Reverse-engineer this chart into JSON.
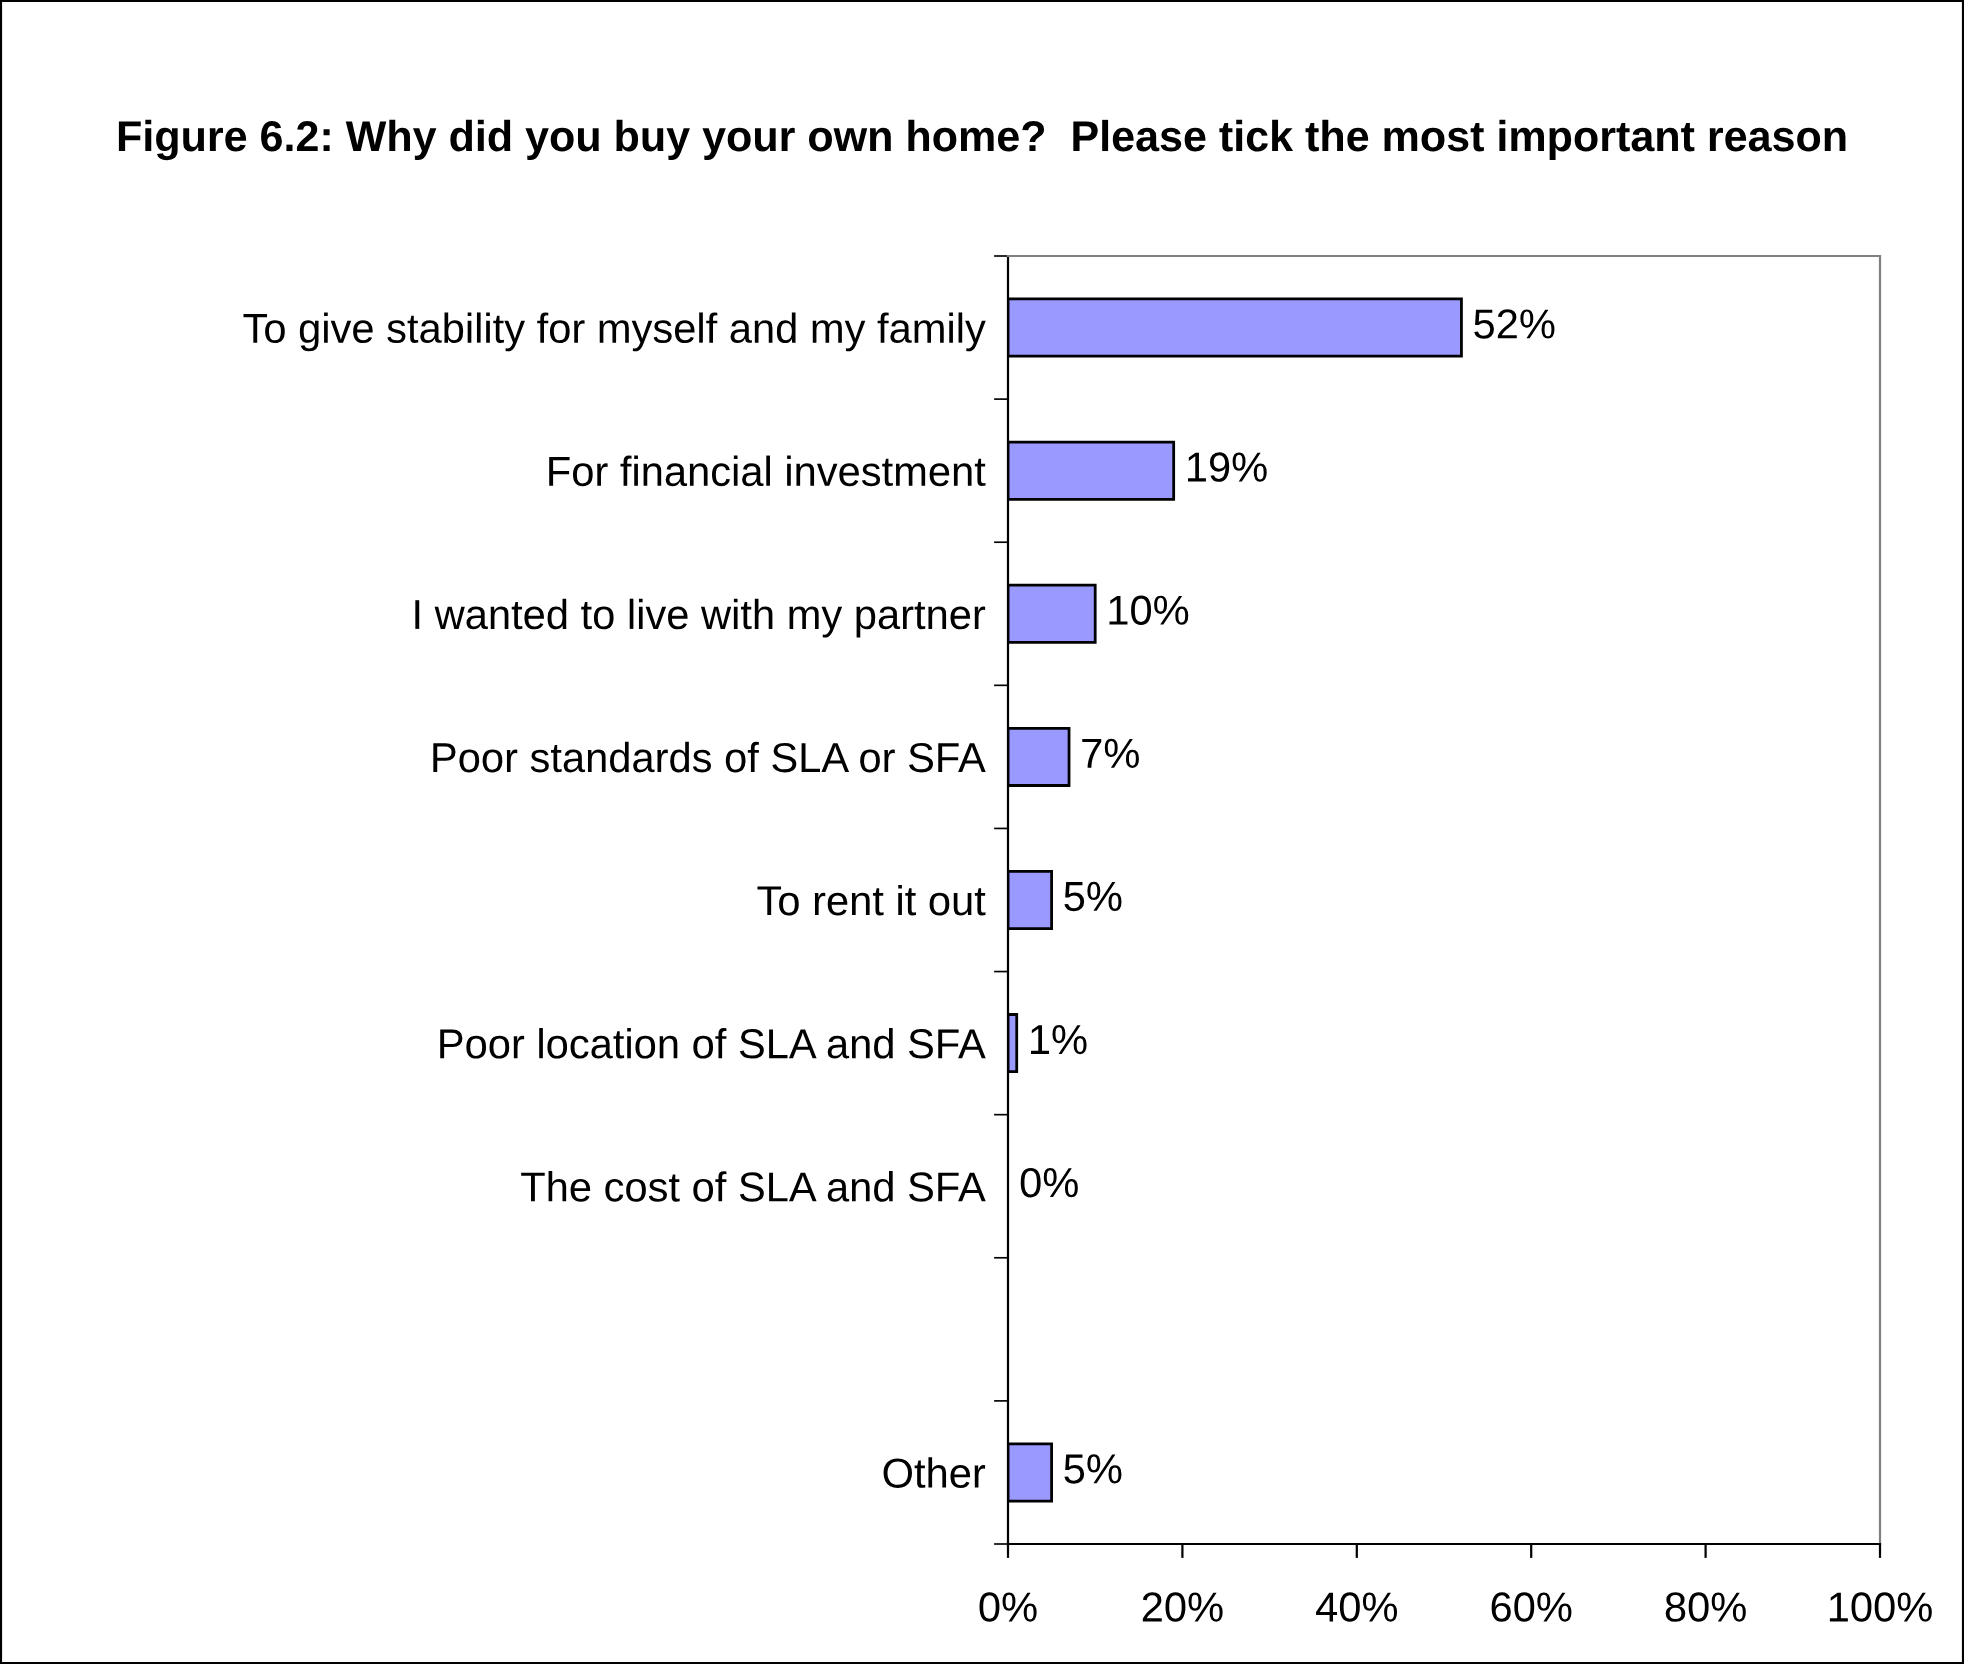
{
  "chart_data": {
    "type": "bar",
    "orientation": "horizontal",
    "title": "Figure 6.2: Why did you buy your own home?  Please tick the most important reason",
    "categories": [
      "To give stability for myself and my family",
      "For financial investment",
      "I wanted to live with my partner",
      "Poor standards of SLA or SFA",
      "To rent it out",
      "Poor location of SLA and SFA",
      "The cost of SLA and SFA",
      null,
      "Other"
    ],
    "values": [
      52,
      19,
      10,
      7,
      5,
      1,
      0,
      null,
      5
    ],
    "value_labels": [
      "52%",
      "19%",
      "10%",
      "7%",
      "5%",
      "1%",
      "0%",
      null,
      "5%"
    ],
    "color": "#9999ff",
    "xlim": [
      0,
      100
    ],
    "xticks": [
      {
        "value": 0,
        "label": "0%"
      },
      {
        "value": 20,
        "label": "20%"
      },
      {
        "value": 40,
        "label": "40%"
      },
      {
        "value": 60,
        "label": "60%"
      },
      {
        "value": 80,
        "label": "80%"
      },
      {
        "value": 100,
        "label": "100%"
      }
    ],
    "grid": false,
    "legend": false
  }
}
